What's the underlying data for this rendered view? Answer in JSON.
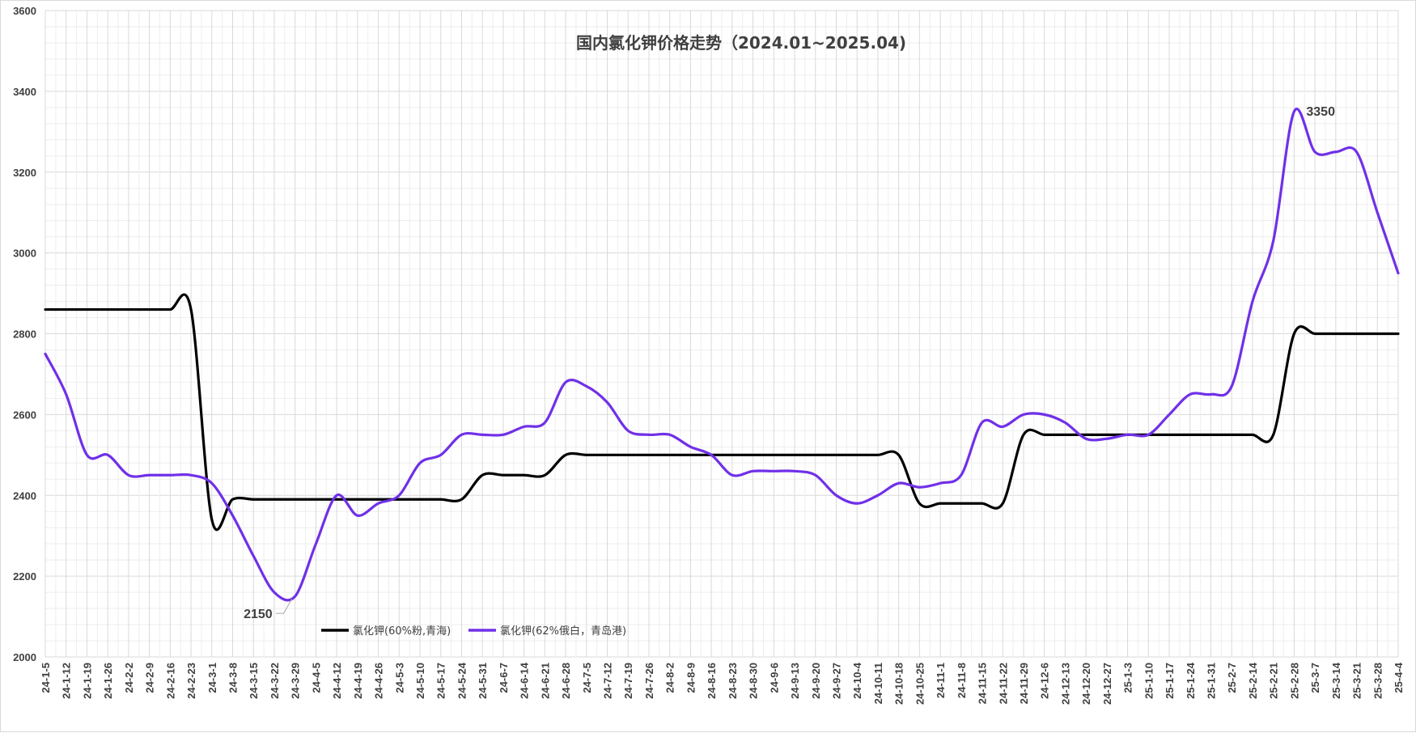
{
  "chart_data": {
    "type": "line",
    "title": "国内氯化钾价格走势（2024.01~2025.04)",
    "xlabel": "",
    "ylabel": "",
    "ylim": [
      2000,
      3600
    ],
    "y_ticks": [
      2000,
      2200,
      2400,
      2600,
      2800,
      3000,
      3200,
      3400,
      3600
    ],
    "grid": true,
    "legend_position": "bottom-left",
    "categories": [
      "24-1-5",
      "24-1-12",
      "24-1-19",
      "24-1-26",
      "24-2-2",
      "24-2-9",
      "24-2-16",
      "24-2-23",
      "24-3-1",
      "24-3-8",
      "24-3-15",
      "24-3-22",
      "24-3-29",
      "24-4-5",
      "24-4-12",
      "24-4-19",
      "24-4-26",
      "24-5-3",
      "24-5-10",
      "24-5-17",
      "24-5-24",
      "24-5-31",
      "24-6-7",
      "24-6-14",
      "24-6-21",
      "24-6-28",
      "24-7-5",
      "24-7-12",
      "24-7-19",
      "24-7-26",
      "24-8-2",
      "24-8-9",
      "24-8-16",
      "24-8-23",
      "24-8-30",
      "24-9-6",
      "24-9-13",
      "24-9-20",
      "24-9-27",
      "24-10-4",
      "24-10-11",
      "24-10-18",
      "24-10-25",
      "24-11-1",
      "24-11-8",
      "24-11-15",
      "24-11-22",
      "24-11-29",
      "24-12-6",
      "24-12-13",
      "24-12-20",
      "24-12-27",
      "25-1-3",
      "25-1-10",
      "25-1-17",
      "25-1-24",
      "25-1-31",
      "25-2-7",
      "25-2-14",
      "25-2-21",
      "25-2-28",
      "25-3-7",
      "25-3-14",
      "25-3-21",
      "25-3-28",
      "25-4-4"
    ],
    "series": [
      {
        "name": "氯化钾(60%粉,青海)",
        "color": "#000000",
        "values": [
          2860,
          2860,
          2860,
          2860,
          2860,
          2860,
          2860,
          2860,
          2340,
          2390,
          2390,
          2390,
          2390,
          2390,
          2390,
          2390,
          2390,
          2390,
          2390,
          2390,
          2390,
          2450,
          2450,
          2450,
          2450,
          2500,
          2500,
          2500,
          2500,
          2500,
          2500,
          2500,
          2500,
          2500,
          2500,
          2500,
          2500,
          2500,
          2500,
          2500,
          2500,
          2500,
          2380,
          2380,
          2380,
          2380,
          2380,
          2550,
          2550,
          2550,
          2550,
          2550,
          2550,
          2550,
          2550,
          2550,
          2550,
          2550,
          2550,
          2550,
          2800,
          2800,
          2800,
          2800,
          2800,
          2800
        ]
      },
      {
        "name": "氯化钾(62%俄白，青岛港)",
        "color": "#7030e8",
        "values": [
          2750,
          2650,
          2500,
          2500,
          2450,
          2450,
          2450,
          2450,
          2430,
          2350,
          2250,
          2160,
          2150,
          2280,
          2400,
          2350,
          2380,
          2400,
          2480,
          2500,
          2550,
          2550,
          2550,
          2570,
          2580,
          2680,
          2670,
          2630,
          2560,
          2550,
          2550,
          2520,
          2500,
          2450,
          2460,
          2460,
          2460,
          2450,
          2400,
          2380,
          2400,
          2430,
          2420,
          2430,
          2450,
          2580,
          2570,
          2600,
          2600,
          2580,
          2540,
          2540,
          2550,
          2550,
          2600,
          2650,
          2650,
          2670,
          2880,
          3030,
          3350,
          3250,
          3250,
          3250,
          3100,
          2950
        ]
      }
    ],
    "annotations": [
      {
        "text": "2150",
        "series": 1,
        "category": "24-3-29",
        "value": 2150
      },
      {
        "text": "3350",
        "series": 1,
        "category": "25-2-28",
        "value": 3350
      }
    ]
  }
}
